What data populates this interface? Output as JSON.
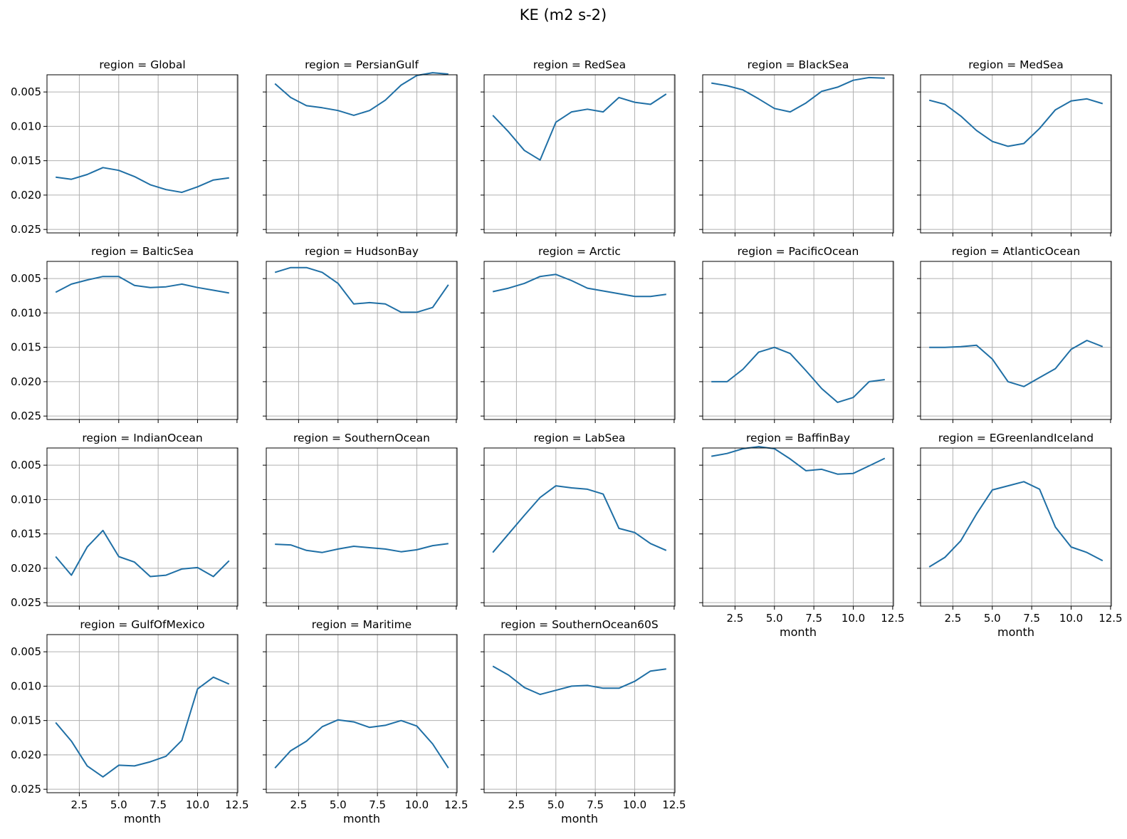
{
  "figure": {
    "suptitle": "KE (m2 s-2)",
    "xlabel": "month",
    "line_color": "#1f6fa5",
    "grid_color": "#b0b0b0"
  },
  "chart_data": {
    "type": "line",
    "layout": {
      "rows": 4,
      "cols": 5,
      "sharex": true,
      "sharey": true
    },
    "x": [
      1,
      2,
      3,
      4,
      5,
      6,
      7,
      8,
      9,
      10,
      11,
      12
    ],
    "xticks": [
      2.5,
      5.0,
      7.5,
      10.0,
      12.5
    ],
    "xtick_labels": [
      "2.5",
      "5.0",
      "7.5",
      "10.0",
      "12.5"
    ],
    "xlim": [
      0.45,
      12.55
    ],
    "ylim": [
      0.0025,
      0.0255
    ],
    "y_inverted": true,
    "yticks": [
      0.005,
      0.01,
      0.015,
      0.02,
      0.025
    ],
    "ytick_labels": [
      "0.005",
      "0.010",
      "0.015",
      "0.020",
      "0.025"
    ],
    "grid": true,
    "panels": [
      {
        "title": "region = Global",
        "values": [
          0.0174,
          0.0177,
          0.017,
          0.016,
          0.0164,
          0.0173,
          0.0185,
          0.0192,
          0.0196,
          0.0188,
          0.0178,
          0.0175
        ]
      },
      {
        "title": "region = PersianGulf",
        "values": [
          0.0038,
          0.0058,
          0.007,
          0.0073,
          0.0077,
          0.0084,
          0.0077,
          0.0062,
          0.004,
          0.0026,
          0.0022,
          0.0024
        ]
      },
      {
        "title": "region = RedSea",
        "values": [
          0.0084,
          0.0108,
          0.0135,
          0.0149,
          0.0094,
          0.0079,
          0.0075,
          0.0079,
          0.0058,
          0.0065,
          0.0068,
          0.0053
        ]
      },
      {
        "title": "region = BlackSea",
        "values": [
          0.0037,
          0.0041,
          0.0047,
          0.006,
          0.0074,
          0.0079,
          0.0066,
          0.0049,
          0.0043,
          0.0033,
          0.0029,
          0.003
        ]
      },
      {
        "title": "region = MedSea",
        "values": [
          0.0062,
          0.0068,
          0.0085,
          0.0106,
          0.0122,
          0.0129,
          0.0125,
          0.0103,
          0.0076,
          0.0063,
          0.006,
          0.0067
        ]
      },
      {
        "title": "region = BalticSea",
        "values": [
          0.007,
          0.0058,
          0.0052,
          0.0047,
          0.0047,
          0.006,
          0.0063,
          0.0062,
          0.0058,
          0.0063,
          0.0067,
          0.0071
        ]
      },
      {
        "title": "region = HudsonBay",
        "values": [
          0.0041,
          0.0034,
          0.0034,
          0.0041,
          0.0057,
          0.0087,
          0.0085,
          0.0087,
          0.0099,
          0.0099,
          0.0092,
          0.0059
        ]
      },
      {
        "title": "region = Arctic",
        "values": [
          0.0069,
          0.0064,
          0.0057,
          0.0047,
          0.0044,
          0.0053,
          0.0064,
          0.0068,
          0.0072,
          0.0076,
          0.0076,
          0.0073
        ]
      },
      {
        "title": "region = PacificOcean",
        "values": [
          0.02,
          0.02,
          0.0182,
          0.0157,
          0.015,
          0.0159,
          0.0184,
          0.021,
          0.023,
          0.0223,
          0.02,
          0.0197
        ]
      },
      {
        "title": "region = AtlanticOcean",
        "values": [
          0.015,
          0.015,
          0.0149,
          0.0147,
          0.0167,
          0.02,
          0.0207,
          0.0194,
          0.0181,
          0.0153,
          0.014,
          0.0149
        ]
      },
      {
        "title": "region = IndianOcean",
        "values": [
          0.0183,
          0.021,
          0.0169,
          0.0145,
          0.0183,
          0.0191,
          0.0212,
          0.021,
          0.0201,
          0.0199,
          0.0212,
          0.0189
        ]
      },
      {
        "title": "region = SouthernOcean",
        "values": [
          0.0165,
          0.0166,
          0.0174,
          0.0177,
          0.0172,
          0.0168,
          0.017,
          0.0172,
          0.0176,
          0.0173,
          0.0167,
          0.0164
        ]
      },
      {
        "title": "region = LabSea",
        "values": [
          0.0177,
          0.015,
          0.0123,
          0.0097,
          0.008,
          0.0083,
          0.0085,
          0.0092,
          0.0142,
          0.0148,
          0.0164,
          0.0174
        ]
      },
      {
        "title": "region = BaffinBay",
        "values": [
          0.0037,
          0.0033,
          0.0026,
          0.0023,
          0.0026,
          0.0041,
          0.0058,
          0.0056,
          0.0063,
          0.0062,
          0.0051,
          0.004
        ]
      },
      {
        "title": "region = EGreenlandIceland",
        "values": [
          0.0198,
          0.0184,
          0.016,
          0.0121,
          0.0086,
          0.008,
          0.0074,
          0.0085,
          0.014,
          0.0169,
          0.0177,
          0.0189
        ]
      },
      {
        "title": "region = GulfOfMexico",
        "values": [
          0.0153,
          0.018,
          0.0216,
          0.0232,
          0.0215,
          0.0216,
          0.021,
          0.0202,
          0.0179,
          0.0104,
          0.0087,
          0.0097
        ]
      },
      {
        "title": "region = Maritime",
        "values": [
          0.0219,
          0.0194,
          0.018,
          0.0159,
          0.0149,
          0.0152,
          0.016,
          0.0157,
          0.015,
          0.0158,
          0.0184,
          0.0219
        ]
      },
      {
        "title": "region = SouthernOcean60S",
        "values": [
          0.0071,
          0.0084,
          0.0102,
          0.0112,
          0.0106,
          0.01,
          0.0099,
          0.0103,
          0.0103,
          0.0093,
          0.0078,
          0.0075
        ]
      }
    ]
  }
}
